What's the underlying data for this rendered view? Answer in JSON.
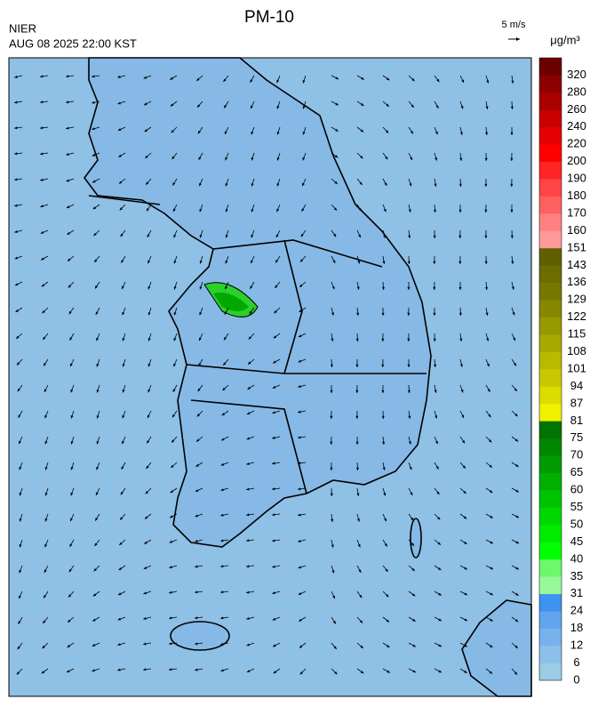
{
  "header": {
    "title": "PM-10",
    "source": "NIER",
    "timestamp": "AUG 08 2025 22:00 KST"
  },
  "wind_scale": {
    "label": "5 m/s"
  },
  "colorbar": {
    "unit": "μg/m³",
    "ticks": [
      0,
      6,
      12,
      18,
      24,
      31,
      35,
      40,
      45,
      50,
      55,
      60,
      65,
      70,
      75,
      81,
      87,
      94,
      101,
      108,
      115,
      122,
      129,
      136,
      143,
      151,
      160,
      170,
      180,
      190,
      200,
      220,
      240,
      260,
      280,
      320
    ],
    "colors": [
      "#9ccbe6",
      "#8cbfe9",
      "#78b2ec",
      "#62a5ef",
      "#3d92f2",
      "#98f898",
      "#6cf86c",
      "#00ff00",
      "#00eb00",
      "#00d700",
      "#00c300",
      "#00af00",
      "#009b00",
      "#008700",
      "#007300",
      "#f0f000",
      "#dcdc00",
      "#c8c800",
      "#b9b900",
      "#a8a800",
      "#989800",
      "#888800",
      "#787800",
      "#6c6c00",
      "#606000",
      "#ff9a9a",
      "#ff8080",
      "#ff6060",
      "#ff4545",
      "#ff2525",
      "#ff0000",
      "#e40000",
      "#c80000",
      "#aa0000",
      "#8c0000",
      "#6a0000"
    ]
  }
}
